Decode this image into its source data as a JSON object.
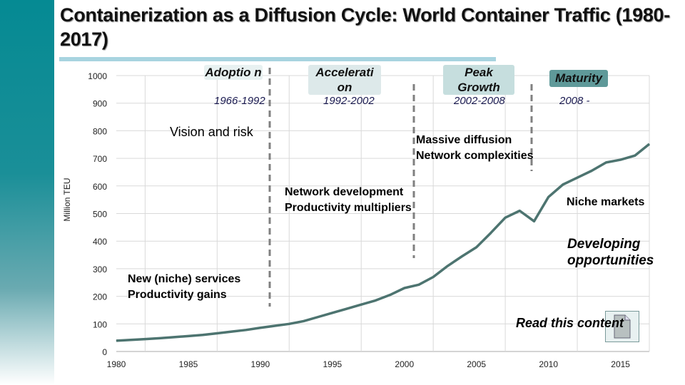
{
  "title": "Containerization as a Diffusion Cycle: World Container Traffic (1980-2017)",
  "phases": [
    {
      "label": "Adoptio n",
      "years": "1966-1992",
      "color": "#e8f1f1"
    },
    {
      "label": "Accelerati on",
      "years": "1992-2002",
      "color": "#dde9ea"
    },
    {
      "label": "Peak Growth",
      "years": "2002-2008",
      "color": "#c6dede"
    },
    {
      "label": "Maturity",
      "years": "2008 -",
      "color": "#5f9999"
    }
  ],
  "annotations": {
    "vision": "Vision and risk",
    "niche1": "New (niche) services",
    "niche2": "Productivity gains",
    "net1": "Network development",
    "net2": "Productivity multipliers",
    "mass1": "Massive diffusion",
    "mass2": "Network complexities",
    "niche_markets": "Niche markets",
    "dev1": "Developing",
    "dev2": "opportunities",
    "read": "Read this content"
  },
  "icons": {
    "document": "document-icon"
  },
  "chart_data": {
    "type": "line",
    "ylabel": "Million TEU",
    "xlabel": "",
    "ylim": [
      0,
      1000
    ],
    "xlim": [
      1980,
      2017
    ],
    "yticks": [
      0,
      100,
      200,
      300,
      400,
      500,
      600,
      700,
      800,
      900,
      1000
    ],
    "xticks": [
      1980,
      1985,
      1990,
      1995,
      2000,
      2005,
      2010,
      2015
    ],
    "grid": true,
    "line_color": "#4d7470",
    "x": [
      1980,
      1981,
      1982,
      1983,
      1984,
      1985,
      1986,
      1987,
      1988,
      1989,
      1990,
      1991,
      1992,
      1993,
      1994,
      1995,
      1996,
      1997,
      1998,
      1999,
      2000,
      2001,
      2002,
      2003,
      2004,
      2005,
      2006,
      2007,
      2008,
      2009,
      2010,
      2011,
      2012,
      2013,
      2014,
      2015,
      2016,
      2017
    ],
    "values": [
      39,
      42,
      45,
      48,
      52,
      56,
      60,
      66,
      72,
      78,
      86,
      93,
      100,
      110,
      125,
      140,
      155,
      170,
      185,
      205,
      230,
      242,
      270,
      310,
      345,
      378,
      430,
      485,
      510,
      472,
      560,
      605,
      630,
      655,
      685,
      695,
      710,
      752
    ]
  }
}
